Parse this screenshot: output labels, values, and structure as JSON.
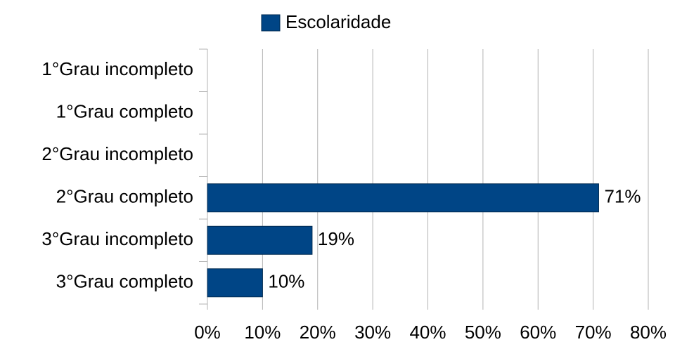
{
  "chart_data": {
    "type": "bar",
    "orientation": "horizontal",
    "categories": [
      "1°Grau incompleto",
      "1°Grau completo",
      "2°Grau incompleto",
      "2°Grau completo",
      "3°Grau incompleto",
      "3°Grau completo"
    ],
    "series": [
      {
        "name": "Escolaridade",
        "color": "#004586",
        "values": [
          0,
          0,
          0,
          71,
          19,
          10
        ],
        "value_labels": [
          null,
          null,
          null,
          "71%",
          "19%",
          "10%"
        ]
      }
    ],
    "xlim": [
      0,
      80
    ],
    "xticks": [
      {
        "value": 0,
        "label": "0%"
      },
      {
        "value": 10,
        "label": "10%"
      },
      {
        "value": 20,
        "label": "20%"
      },
      {
        "value": 30,
        "label": "30%"
      },
      {
        "value": 40,
        "label": "40%"
      },
      {
        "value": 50,
        "label": "50%"
      },
      {
        "value": 60,
        "label": "60%"
      },
      {
        "value": 70,
        "label": "70%"
      },
      {
        "value": 80,
        "label": "80%"
      }
    ],
    "grid": true,
    "legend": "top"
  }
}
